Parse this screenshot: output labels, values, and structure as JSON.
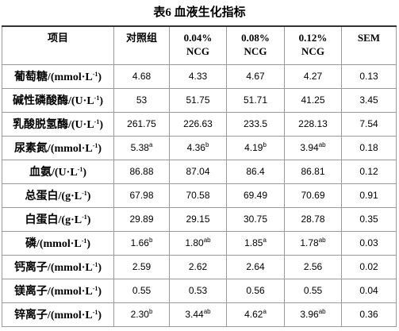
{
  "title": "表6  血液生化指标",
  "table": {
    "header": [
      "项目",
      "对照组",
      [
        "0.04%",
        "NCG"
      ],
      [
        "0.08%",
        "NCG"
      ],
      [
        "0.12%",
        "NCG"
      ],
      "SEM"
    ],
    "rows": [
      {
        "item": {
          "text": "葡萄糖/(mmol·L",
          "sup": "-1",
          "end": ")"
        },
        "cells": [
          "4.68",
          "4.33",
          "4.67",
          "4.27",
          "0.13"
        ]
      },
      {
        "item": {
          "text": "碱性磷酸酶/(U·L",
          "sup": "-1",
          "end": ")"
        },
        "cells": [
          "53",
          "51.75",
          "51.71",
          "41.25",
          "3.45"
        ]
      },
      {
        "item": {
          "text": "乳酸脱氢酶/(U·L",
          "sup": "-1",
          "end": ")"
        },
        "cells": [
          "261.75",
          "226.63",
          "233.5",
          "228.13",
          "7.54"
        ]
      },
      {
        "item": {
          "text": "尿素氮/(mmol·L",
          "sup": "-1",
          "end": ")"
        },
        "cells": [
          {
            "v": "5.38",
            "sup": "a"
          },
          {
            "v": "4.36",
            "sup": "b"
          },
          {
            "v": "4.19",
            "sup": "b"
          },
          {
            "v": "3.94",
            "sup": "ab"
          },
          "0.18"
        ]
      },
      {
        "item": {
          "text": "血氨/(U·L",
          "sup": "-1",
          "end": ")"
        },
        "cells": [
          "86.88",
          "87.04",
          "86.4",
          "86.81",
          "0.12"
        ]
      },
      {
        "item": {
          "text": "总蛋白/(g·L",
          "sup": "-1",
          "end": ")"
        },
        "cells": [
          "67.98",
          "70.58",
          "69.49",
          "70.69",
          "0.91"
        ]
      },
      {
        "item": {
          "text": "白蛋白/(g·L",
          "sup": "-1",
          "end": ")"
        },
        "cells": [
          "29.89",
          "29.15",
          "30.75",
          "28.78",
          "0.35"
        ]
      },
      {
        "item": {
          "text": "磷/(mmol·L",
          "sup": "-1",
          "end": ")"
        },
        "cells": [
          {
            "v": "1.66",
            "sup": "b"
          },
          {
            "v": "1.80",
            "sup": "ab"
          },
          {
            "v": "1.85",
            "sup": "a"
          },
          {
            "v": "1.78",
            "sup": "ab"
          },
          "0.03"
        ]
      },
      {
        "item": {
          "text": "钙离子/(mmol·L",
          "sup": "-1",
          "end": ")"
        },
        "cells": [
          "2.59",
          "2.62",
          "2.64",
          "2.56",
          "0.02"
        ]
      },
      {
        "item": {
          "text": "镁离子/(mmol·L",
          "sup": "-1",
          "end": ")"
        },
        "cells": [
          "0.55",
          "0.53",
          "0.56",
          "0.55",
          "0.04"
        ]
      },
      {
        "item": {
          "text": "锌离子/(mmol·L",
          "sup": "-1",
          "end": ")"
        },
        "cells": [
          {
            "v": "2.30",
            "sup": "b"
          },
          {
            "v": "3.44",
            "sup": "ab"
          },
          {
            "v": "4.62",
            "sup": "a"
          },
          {
            "v": "3.96",
            "sup": "ab"
          },
          "0.36"
        ]
      }
    ]
  }
}
